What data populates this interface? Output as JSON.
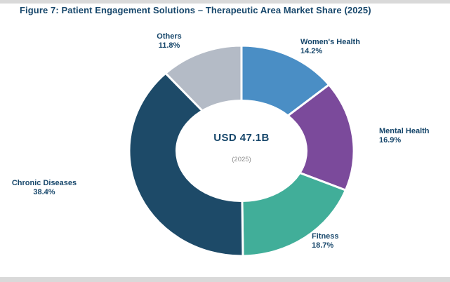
{
  "figure": {
    "title": "Figure 7: Patient Engagement Solutions – Therapeutic Area Market Share (2025)"
  },
  "center": {
    "value": "USD 47.1B",
    "sub": "(2025)"
  },
  "colors": {
    "title_text": "#17476b",
    "label_text": "#17476b",
    "center_sub_text": "#8a8a8a",
    "edge_bar": "#d9d9d9"
  },
  "chart_data": {
    "type": "pie",
    "title": "Figure 7: Patient Engagement Solutions – Therapeutic Area Market Share (2025)",
    "donut": true,
    "start_angle_deg": 90,
    "direction": "clockwise",
    "center_label": "USD 47.1B",
    "center_sublabel": "(2025)",
    "legend_position": "none",
    "slices": [
      {
        "label": "Women's Health",
        "value": 14.2,
        "pct": "14.2%",
        "color": "#4a8ec5"
      },
      {
        "label": "Mental Health",
        "value": 16.9,
        "pct": "16.9%",
        "color": "#7b4a9b"
      },
      {
        "label": "Fitness",
        "value": 18.7,
        "pct": "18.7%",
        "color": "#41ae99"
      },
      {
        "label": "Chronic Diseases",
        "value": 38.4,
        "pct": "38.4%",
        "color": "#1d4a68"
      },
      {
        "label": "Others",
        "value": 11.8,
        "pct": "11.8%",
        "color": "#b4bbc6"
      }
    ]
  }
}
